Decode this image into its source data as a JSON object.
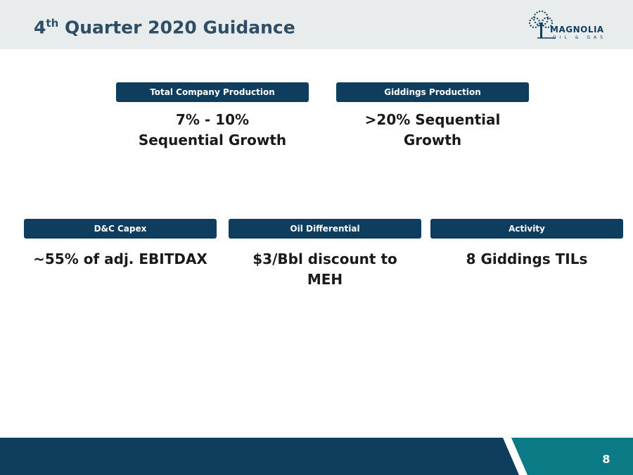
{
  "header": {
    "title_number": "4",
    "title_suffix": "th",
    "title_text": "Quarter 2020 Guidance",
    "logo_name": "MAGNOLIA",
    "logo_tagline": "OIL & GAS"
  },
  "cards": [
    {
      "label": "Total Company Production",
      "value": "7% - 10% Sequential Growth"
    },
    {
      "label": "Giddings Production",
      "value": ">20% Sequential Growth"
    },
    {
      "label": "D&C  Capex",
      "value": "~55% of adj. EBITDAX"
    },
    {
      "label": "Oil Differential",
      "value": "$3/Bbl discount to MEH"
    },
    {
      "label": "Activity",
      "value": "8 Giddings TILs"
    }
  ],
  "footer": {
    "page_number": 8
  }
}
